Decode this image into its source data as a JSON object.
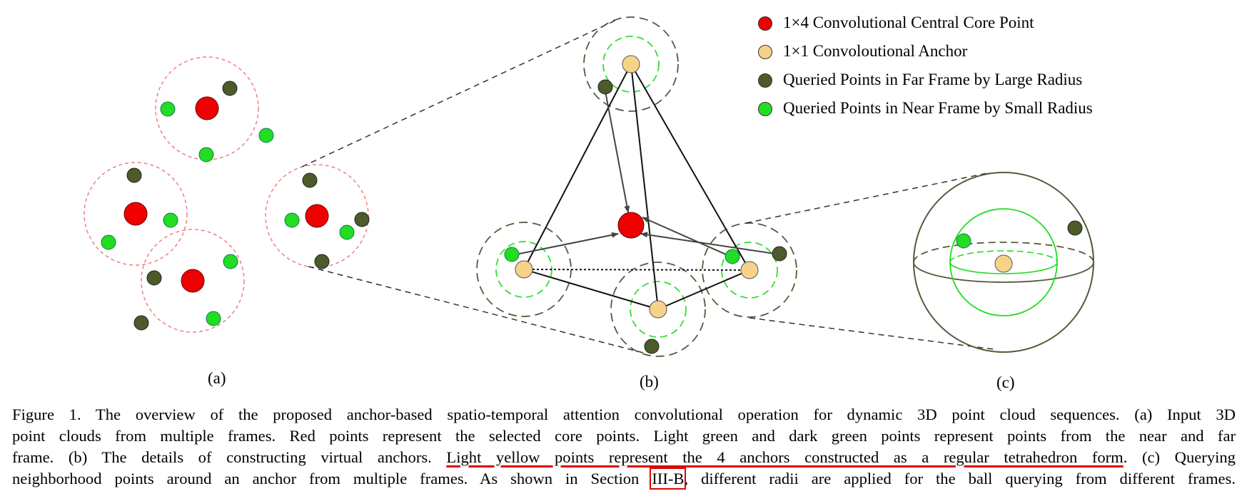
{
  "legend": {
    "items": [
      {
        "label": "1×4 Convolutional Central Core Point",
        "color": "#ee0000"
      },
      {
        "label": "1×1 Convoloutional Anchor",
        "color": "#f7d38a"
      },
      {
        "label": "Queried Points in Far Frame by Large Radius",
        "color": "#4d5a2a"
      },
      {
        "label": "Queried Points in Near Frame by Small Radius",
        "color": "#22dd22"
      }
    ]
  },
  "panels": {
    "a": "(a)",
    "b": "(b)",
    "c": "(c)"
  },
  "colors": {
    "core": "#ee0000",
    "anchor": "#f7d38a",
    "far": "#4d5a2a",
    "near": "#22dd22",
    "query_circle": "#f08080",
    "underline": "#e00000"
  },
  "caption": {
    "line1": "Figure 1.  The overview of the proposed anchor-based spatio-temporal attention convolutional operation for dynamic 3D point cloud sequences. (a) Input 3D",
    "line2": "point clouds from multiple frames. Red points represent the selected core points. Light green and dark green points represent points from the near and far",
    "line3_pre": "frame. (b) The details of constructing virtual anchors. ",
    "line3_highlight": "Light yellow points represent the 4 anchors constructed as a regular tetrahedron form",
    "line3_post": ". (c) Querying",
    "line4_pre": "neighborhood points around an anchor from multiple frames. As shown in Section ",
    "line4_ref": "III-B",
    "line4_post": ", different radii are applied for the ball querying from different frames."
  }
}
